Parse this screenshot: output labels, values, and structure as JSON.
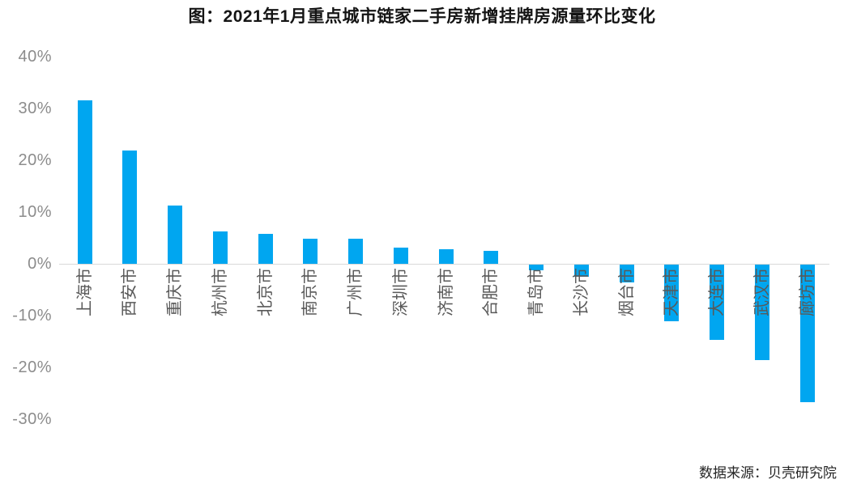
{
  "title": "图：2021年1月重点城市链家二手房新增挂牌房源量环比变化",
  "source": "数据来源：贝壳研究院",
  "colors": {
    "bar": "#00a6f0",
    "axis_line": "#d9d9d9",
    "ytick_label": "#8c8c8c",
    "category_label": "#595959",
    "title": "#141414"
  },
  "chart_data": {
    "type": "bar",
    "title": "图：2021年1月重点城市链家二手房新增挂牌房源量环比变化",
    "source": "数据来源：贝壳研究院",
    "categories": [
      "上海市",
      "西安市",
      "重庆市",
      "杭州市",
      "北京市",
      "南京市",
      "广州市",
      "深圳市",
      "济南市",
      "合肥市",
      "青岛市",
      "长沙市",
      "烟台市",
      "天津市",
      "大连市",
      "武汉市",
      "廊坊市"
    ],
    "values": [
      31.5,
      21.8,
      11.3,
      6.3,
      5.8,
      4.9,
      4.8,
      3.1,
      2.8,
      2.5,
      -1.1,
      -2.3,
      -3.5,
      -11,
      -14.5,
      -18.5,
      -26.5
    ],
    "unit": "%",
    "xlabel": "",
    "ylabel": "",
    "ylim": [
      -30,
      40
    ],
    "yticks": [
      40,
      30,
      20,
      10,
      0,
      -10,
      -20,
      -30
    ],
    "ytick_labels": [
      "40%",
      "30%",
      "20%",
      "10%",
      "0%",
      "-10%",
      "-20%",
      "-30%"
    ],
    "grid": false,
    "legend": false,
    "bar_color": "#00a6f0"
  }
}
